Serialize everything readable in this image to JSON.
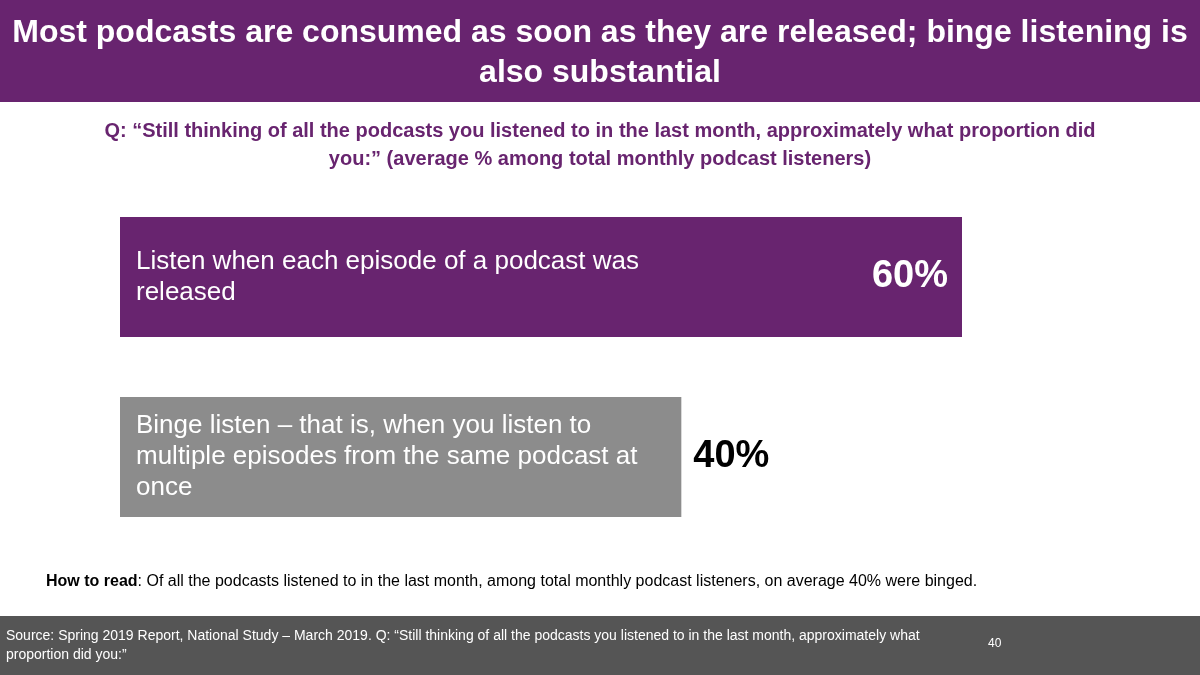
{
  "chart_data": {
    "type": "bar",
    "orientation": "horizontal",
    "title": "Most podcasts are consumed as soon as they are released; binge listening is also substantial",
    "subtitle": "Q: “Still thinking of all the podcasts you listened to in the last month, approximately what proportion did you:” (average % among total monthly podcast listeners)",
    "categories": [
      "Listen when each episode of a podcast was released",
      "Binge listen – that is, when you listen to multiple episodes from the same podcast at once"
    ],
    "values": [
      60,
      40
    ],
    "value_labels": [
      "60%",
      "40%"
    ],
    "colors": [
      "#68246f",
      "#8c8c8c"
    ],
    "legend": false,
    "annotations": [
      "How to read: Of all the podcasts listened to in the last month, among total monthly podcast listeners, on average 40% were binged.",
      "Source: Spring 2019 Report, National Study – March 2019. Q: “Still thinking of all the podcasts you listened to in the last month, approximately what proportion did you:”",
      "40"
    ]
  }
}
